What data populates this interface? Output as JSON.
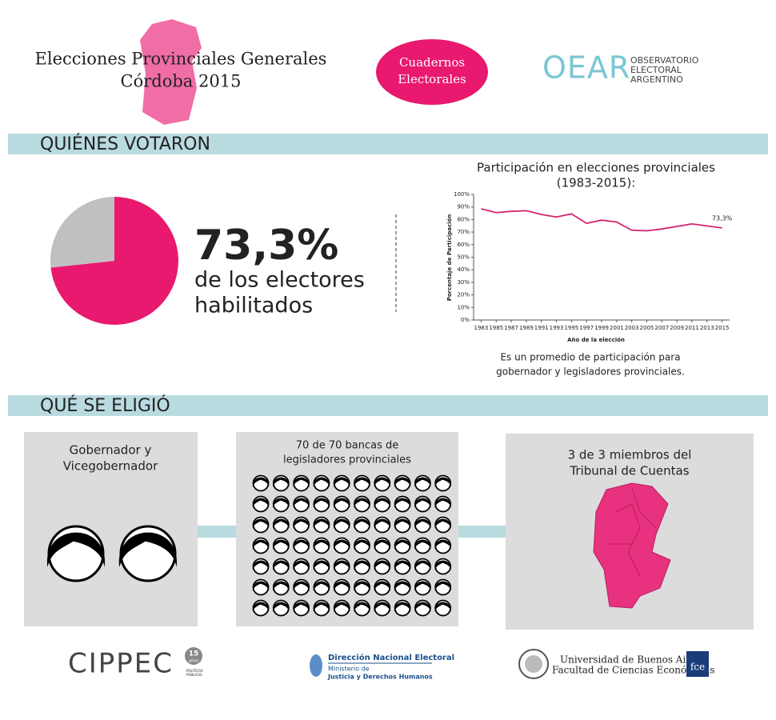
{
  "header": {
    "title": [
      "Elecciones Provinciales Generales",
      "Córdoba 2015"
    ],
    "badge": [
      "Cuadernos",
      "Electorales"
    ],
    "logo": {
      "name": "OEAR",
      "text": [
        "OBSERVATORIO",
        "ELECTORAL",
        "ARGENTINO"
      ]
    }
  },
  "sections": [
    "QUIÉNES VOTARON",
    "QUÉ SE ELIGIÓ"
  ],
  "headline": [
    "de los electores",
    "habilitados"
  ],
  "chart_data": [
    {
      "type": "pie",
      "values": [
        73.3,
        26.7
      ],
      "colors": [
        "#e8196f",
        "#c0c0c0"
      ],
      "value_labels": [
        "73,3%",
        null
      ]
    },
    {
      "type": "line",
      "title": [
        "Participación en elecciones provinciales",
        "(1983-2015):"
      ],
      "x_label": "Año de la elección",
      "y_label": "Porcentaje de Participación",
      "x": [
        1983,
        1985,
        1987,
        1989,
        1991,
        1993,
        1995,
        1997,
        1999,
        2001,
        2003,
        2005,
        2007,
        2011,
        2015
      ],
      "series": [
        {
          "name": "Participación",
          "color": "#d6246e",
          "values": [
            88.5,
            85.5,
            86.5,
            87,
            84,
            82,
            84.5,
            77,
            79.5,
            78,
            71.5,
            71,
            72.5,
            76.5,
            73.3
          ],
          "value_labels": [
            null,
            null,
            null,
            null,
            null,
            null,
            null,
            null,
            null,
            null,
            null,
            null,
            null,
            null,
            "73,3%"
          ]
        }
      ],
      "xlim": [
        1982,
        2016
      ],
      "xticks": [
        1983,
        1985,
        1987,
        1989,
        1991,
        1993,
        1995,
        1997,
        1999,
        2001,
        2003,
        2005,
        2007,
        2009,
        2011,
        2013,
        2015
      ],
      "ylim": [
        0,
        100
      ],
      "yticks": [
        {
          "value": 0,
          "label": "0%"
        },
        {
          "value": 10,
          "label": "10%"
        },
        {
          "value": 20,
          "label": "20%"
        },
        {
          "value": 30,
          "label": "30%"
        },
        {
          "value": 40,
          "label": "40%"
        },
        {
          "value": 50,
          "label": "50%"
        },
        {
          "value": 60,
          "label": "60%"
        },
        {
          "value": 70,
          "label": "70%"
        },
        {
          "value": 80,
          "label": "80%"
        },
        {
          "value": 90,
          "label": "90%"
        },
        {
          "value": 100,
          "label": "100%"
        }
      ],
      "note": [
        "Es un promedio de participación para",
        "gobernador y legisladores provinciales."
      ]
    }
  ],
  "cards": [
    [
      "Gobernador y",
      "Vicegobernador"
    ],
    [
      "70 de 70 bancas de",
      "legisladores provinciales"
    ],
    [
      "3 de 3 miembros del",
      "Tribunal de Cuentas"
    ]
  ],
  "footer": {
    "cippec": {
      "name": "CIPPEC",
      "badge": "15",
      "badge_sub": "años",
      "tag": [
        "POLÍTICAS",
        "PÚBLICAS"
      ]
    },
    "dne": {
      "name": "Dirección Nacional Electoral",
      "ministry": [
        "Ministerio de",
        "Justicia y Derechos Humanos"
      ]
    },
    "uba": {
      "lines": [
        "Universidad de Buenos Aires",
        "Facultad de Ciencias Económicas"
      ],
      "badge": "fce"
    }
  }
}
